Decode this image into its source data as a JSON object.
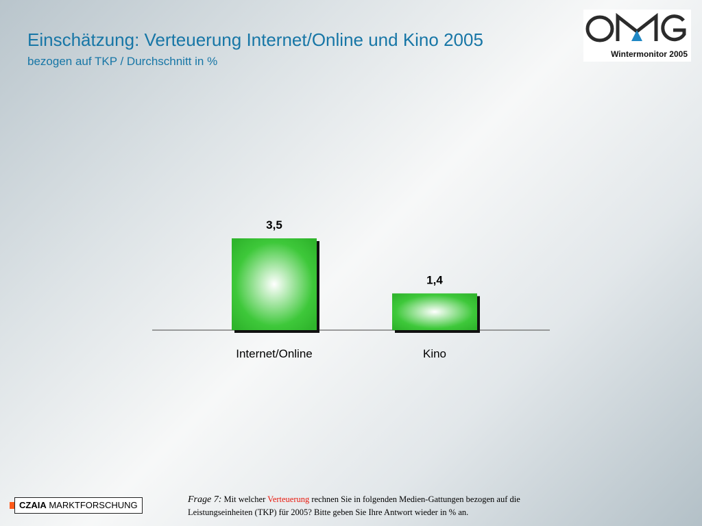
{
  "header": {
    "title": "Einschätzung: Verteuerung Internet/Online und Kino 2005",
    "subtitle": "bezogen auf TKP / Durchschnitt in %"
  },
  "logo": {
    "wordmark": "OMG",
    "caption": "Wintermonitor 2005"
  },
  "chart_data": {
    "type": "bar",
    "categories": [
      "Internet/Online",
      "Kino"
    ],
    "values": [
      3.5,
      1.4
    ],
    "value_labels": [
      "3,5",
      "1,4"
    ],
    "ylim": [
      0,
      3.5
    ],
    "grid": false,
    "legend": "none",
    "bar_color": "#3ec83a",
    "bar_highlight": "#ffffff"
  },
  "footer": {
    "brand_bold": "CZAIA",
    "brand_rest": "MARKTFORSCHUNG",
    "brand_accent": "#ff5a1a",
    "question_label": "Frage 7:",
    "question_pre": "Mit welcher",
    "question_highlight": "Verteuerung",
    "question_post": "rechnen Sie in folgenden Medien-Gattungen bezogen auf die Leistungseinheiten (TKP) für 2005? Bitte geben Sie Ihre Antwort wieder in % an.",
    "highlight_color": "#e8180c"
  }
}
